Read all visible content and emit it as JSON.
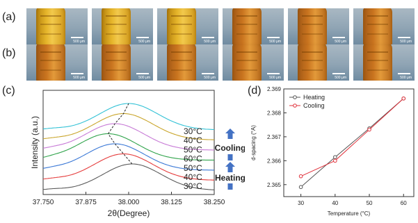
{
  "panels": {
    "a": "(a)",
    "b": "(b)",
    "c": "(c)",
    "d": "(d)"
  },
  "photos": {
    "scale_label": "500 μm",
    "row_a_count": 6,
    "row_b_count": 6
  },
  "colors": {
    "heating": "#555555",
    "cooling": "#e0303a",
    "arrow": "#4472c4"
  },
  "chart_data": [
    {
      "type": "line",
      "panel": "(c)",
      "xlabel": "2θ(Degree)",
      "ylabel": "Intensity (a.u.)",
      "xlim": [
        37.75,
        38.25
      ],
      "x_ticks": [
        "37.750",
        "37.875",
        "38.000",
        "38.125",
        "38.250"
      ],
      "curve_labels": [
        "30°C",
        "40°C",
        "50°C",
        "60°C",
        "50°C",
        "40°C",
        "30°C"
      ],
      "legend_words": {
        "cooling": "Cooling",
        "heating": "Heating"
      },
      "series": [
        {
          "name": "30°C",
          "color": "#5a5a5a",
          "peak": 38.01,
          "offset": 0
        },
        {
          "name": "40°C",
          "color": "#e53b3b",
          "peak": 37.985,
          "offset": 1
        },
        {
          "name": "50°C",
          "color": "#3a78d6",
          "peak": 37.96,
          "offset": 2
        },
        {
          "name": "60°C",
          "color": "#2ea34a",
          "peak": 37.94,
          "offset": 3
        },
        {
          "name": "50°C",
          "color": "#c77ad6",
          "peak": 37.96,
          "offset": 4
        },
        {
          "name": "40°C",
          "color": "#c9a52a",
          "peak": 37.985,
          "offset": 5
        },
        {
          "name": "30°C",
          "color": "#32c2d6",
          "peak": 38.0,
          "offset": 6
        }
      ]
    },
    {
      "type": "line",
      "panel": "(d)",
      "xlabel": "Temperature (°C)",
      "ylabel": "d-spacing (°A)",
      "xlim": [
        25,
        63
      ],
      "ylim": [
        2.3645,
        2.369
      ],
      "x_ticks": [
        30,
        40,
        50,
        60
      ],
      "y_ticks": [
        "2.365",
        "2.366",
        "2.367",
        "2.368",
        "2.369"
      ],
      "legend_position": "top-left",
      "series": [
        {
          "name": "Heating",
          "x": [
            30,
            40,
            50,
            60
          ],
          "y": [
            2.3649,
            2.36615,
            2.36735,
            2.3686
          ]
        },
        {
          "name": "Cooling",
          "x": [
            30,
            40,
            50,
            60
          ],
          "y": [
            2.36535,
            2.366,
            2.3673,
            2.3686
          ]
        }
      ]
    }
  ]
}
